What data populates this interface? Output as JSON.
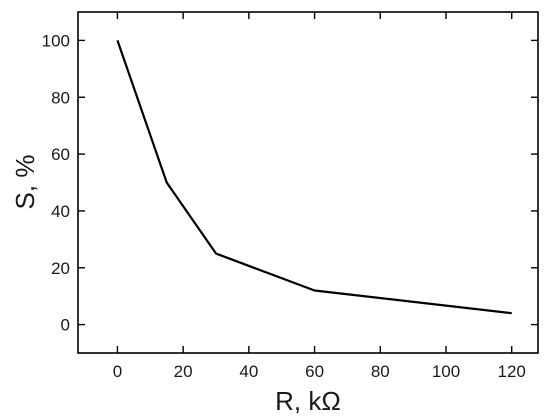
{
  "chart_data": {
    "type": "line",
    "title": "",
    "xlabel": "R, kΩ",
    "ylabel": "S, %",
    "xlim": [
      -12,
      128
    ],
    "ylim": [
      -10,
      110
    ],
    "xticks": [
      0,
      20,
      40,
      60,
      80,
      100,
      120
    ],
    "yticks": [
      0,
      20,
      40,
      60,
      80,
      100
    ],
    "grid": false,
    "legend": "none",
    "series": [
      {
        "color": "#000000",
        "x": [
          0,
          15,
          30,
          60,
          120
        ],
        "y": [
          100,
          50,
          25,
          12,
          4
        ]
      }
    ]
  }
}
